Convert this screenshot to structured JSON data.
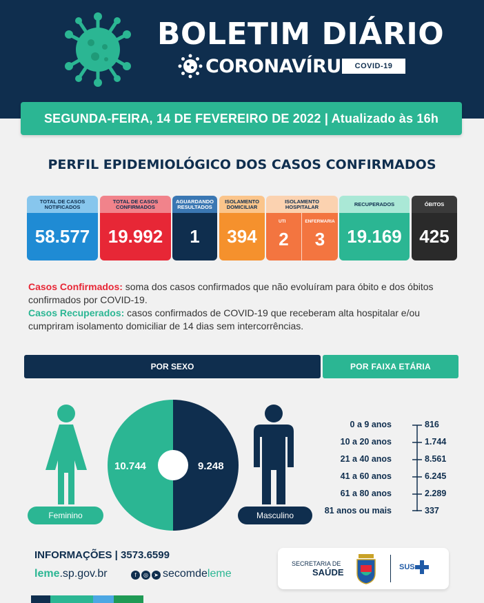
{
  "header": {
    "title": "BOLETIM DIÁRIO",
    "subtitle": "CORONAVÍRUS",
    "badge": "COVID-19"
  },
  "date_bar": "SEGUNDA-FEIRA, 14 DE FEVEREIRO DE 2022 | Atualizado às 16h",
  "section_title": "PERFIL EPIDEMIOLÓGICO DOS CASOS CONFIRMADOS",
  "cards": {
    "total_notificados": {
      "label": "TOTAL DE CASOS NOTIFICADOS",
      "value": "58.577"
    },
    "total_confirmados": {
      "label": "TOTAL DE CASOS CONFIRMADOS",
      "value": "19.992"
    },
    "aguardando": {
      "label": "AGUARDANDO RESULTADOS",
      "value": "1"
    },
    "isolamento_domiciliar": {
      "label": "ISOLAMENTO DOMICILIAR",
      "value": "394"
    },
    "isolamento_hospitalar": {
      "label": "ISOLAMENTO HOSPITALAR",
      "uti_label": "UTI",
      "uti_value": "2",
      "enfermaria_label": "ENFERMARIA",
      "enfermaria_value": "3"
    },
    "recuperados": {
      "label": "RECUPERADOS",
      "value": "19.169"
    },
    "obitos": {
      "label": "ÓBITOS",
      "value": "425"
    }
  },
  "definitions": {
    "confirmados_key": "Casos Confirmados:",
    "confirmados_text": " soma dos casos confirmados que não evoluíram para óbito e dos óbitos confirmados por COVID-19.",
    "recuperados_key": "Casos Recuperados:",
    "recuperados_text": " casos confirmados de COVID-19 que receberam alta hospitalar e/ou cumpriram isolamento domiciliar de 14 dias sem intercorrências."
  },
  "por_sexo": {
    "title": "POR SEXO",
    "feminino_label": "Feminino",
    "feminino_value": "10.744",
    "masculino_label": "Masculino",
    "masculino_value": "9.248"
  },
  "por_faixa": {
    "title": "POR FAIXA ETÁRIA",
    "rows": [
      {
        "label": "0 a 9 anos",
        "value": "816"
      },
      {
        "label": "10 a 20 anos",
        "value": "1.744"
      },
      {
        "label": "21 a 40 anos",
        "value": "8.561"
      },
      {
        "label": "41 a 60 anos",
        "value": "6.245"
      },
      {
        "label": "61 a 80 anos",
        "value": "2.289"
      },
      {
        "label": "81 anos ou mais",
        "value": "337"
      }
    ]
  },
  "footer": {
    "info": "INFORMAÇÕES | 3573.6599",
    "site_bold": "leme",
    "site_rest": ".sp.gov.br",
    "handle_pre": "secomde",
    "handle_bold": "leme",
    "secretaria_label": "SECRETARIA DE",
    "secretaria_name": "SAÚDE",
    "sus_label": "SUS"
  },
  "colors": {
    "navy": "#0f2e4e",
    "green": "#2bb693",
    "red": "#e72736",
    "blue": "#1f8bd4",
    "orange": "#f5912d"
  },
  "icons": [
    "virus-icon",
    "coronavirus-icon",
    "female-icon",
    "male-icon",
    "facebook-icon",
    "instagram-icon",
    "telegram-icon",
    "leme-crest-icon",
    "sus-cross-icon"
  ]
}
